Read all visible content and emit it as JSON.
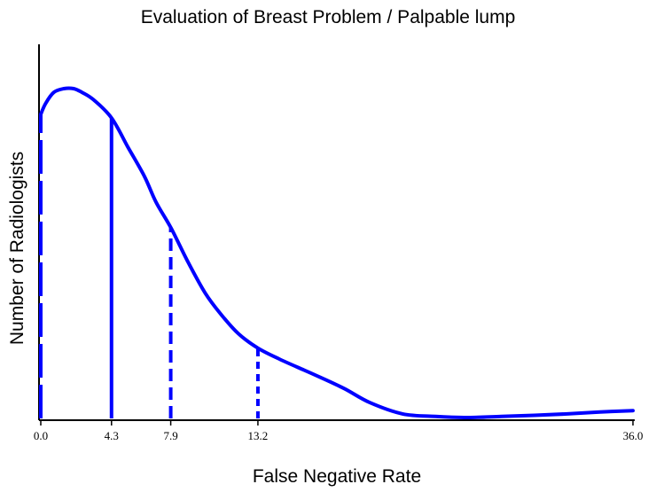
{
  "chart_data": {
    "type": "line",
    "title": "Evaluation of Breast Problem / Palpable lump",
    "xlabel": "False Negative Rate",
    "ylabel": "Number of Radiologists",
    "xlim": [
      0,
      36
    ],
    "ylim": [
      0,
      1.0
    ],
    "x_ticks": [
      {
        "value": 0.0,
        "label": "0.0"
      },
      {
        "value": 4.3,
        "label": "4.3"
      },
      {
        "value": 7.9,
        "label": "7.9"
      },
      {
        "value": 13.2,
        "label": "13.2"
      },
      {
        "value": 36.0,
        "label": "36.0"
      }
    ],
    "curve": {
      "color": "#0000ff",
      "x": [
        0,
        0.3,
        0.8,
        1.4,
        2.0,
        2.5,
        3.2,
        4.3,
        5.3,
        6.3,
        7.0,
        7.9,
        8.9,
        10.0,
        11.0,
        12.0,
        13.2,
        14.5,
        16.0,
        17.0,
        18.5,
        20.0,
        22.0,
        24.0,
        26.0,
        28.0,
        30.0,
        32.0,
        34.0,
        36.0
      ],
      "y": [
        0.83,
        0.86,
        0.89,
        0.9,
        0.9,
        0.89,
        0.87,
        0.82,
        0.74,
        0.66,
        0.59,
        0.52,
        0.43,
        0.34,
        0.28,
        0.23,
        0.19,
        0.16,
        0.13,
        0.11,
        0.078,
        0.041,
        0.01,
        0.003,
        0.0,
        0.003,
        0.006,
        0.01,
        0.015,
        0.019
      ]
    },
    "reference_lines": [
      {
        "x": 0.0,
        "style": "long-dash",
        "color": "#0000ff"
      },
      {
        "x": 4.3,
        "style": "solid",
        "color": "#0000ff"
      },
      {
        "x": 7.9,
        "style": "dash",
        "color": "#0000ff"
      },
      {
        "x": 13.2,
        "style": "short-dash",
        "color": "#0000ff"
      }
    ],
    "grid": false,
    "legend": "none"
  }
}
